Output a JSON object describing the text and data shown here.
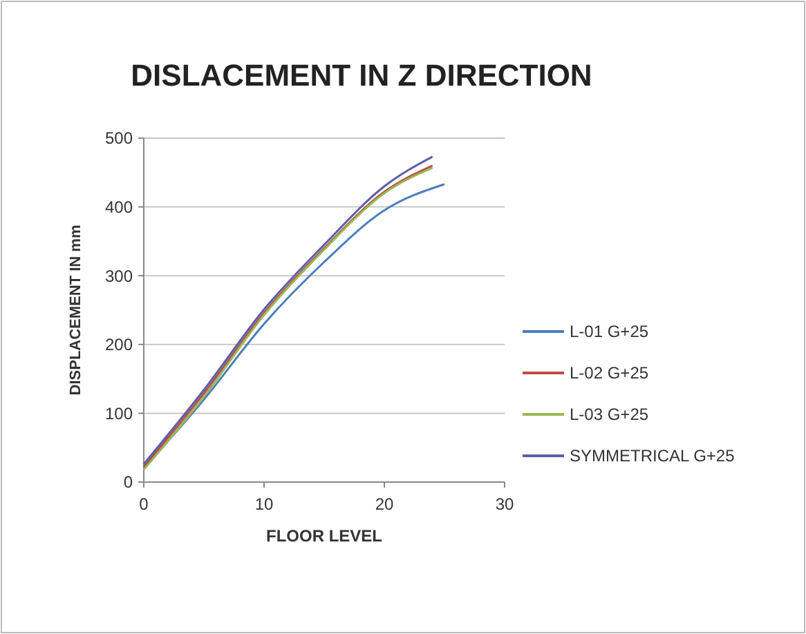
{
  "chart_data": {
    "type": "line",
    "title": "DISLACEMENT IN Z DIRECTION",
    "xlabel": "FLOOR LEVEL",
    "ylabel": "DISPLACEMENT IN mm",
    "xlim": [
      0,
      30
    ],
    "xticks": [
      0,
      10,
      20,
      30
    ],
    "ylim": [
      0,
      500
    ],
    "yticks": [
      0,
      100,
      200,
      300,
      400,
      500
    ],
    "grid": "y",
    "legend": "right",
    "series": [
      {
        "name": "L-01 G+25",
        "color": "#4a7ebb",
        "x": [
          0,
          5,
          10,
          15,
          20,
          25
        ],
        "values": [
          20,
          120,
          230,
          320,
          395,
          433
        ]
      },
      {
        "name": "L-02 G+25",
        "color": "#be4b48",
        "x": [
          0,
          5,
          10,
          15,
          20,
          24
        ],
        "values": [
          22,
          129,
          246,
          340,
          422,
          460
        ]
      },
      {
        "name": "L-03 G+25",
        "color": "#98b954",
        "x": [
          0,
          5,
          10,
          15,
          20,
          24
        ],
        "values": [
          18,
          124,
          243,
          338,
          420,
          457
        ]
      },
      {
        "name": "SYMMETRICAL G+25",
        "color": "#5a5fa8",
        "x": [
          0,
          5,
          10,
          15,
          20,
          24
        ],
        "values": [
          26,
          134,
          251,
          345,
          430,
          473
        ]
      }
    ]
  }
}
